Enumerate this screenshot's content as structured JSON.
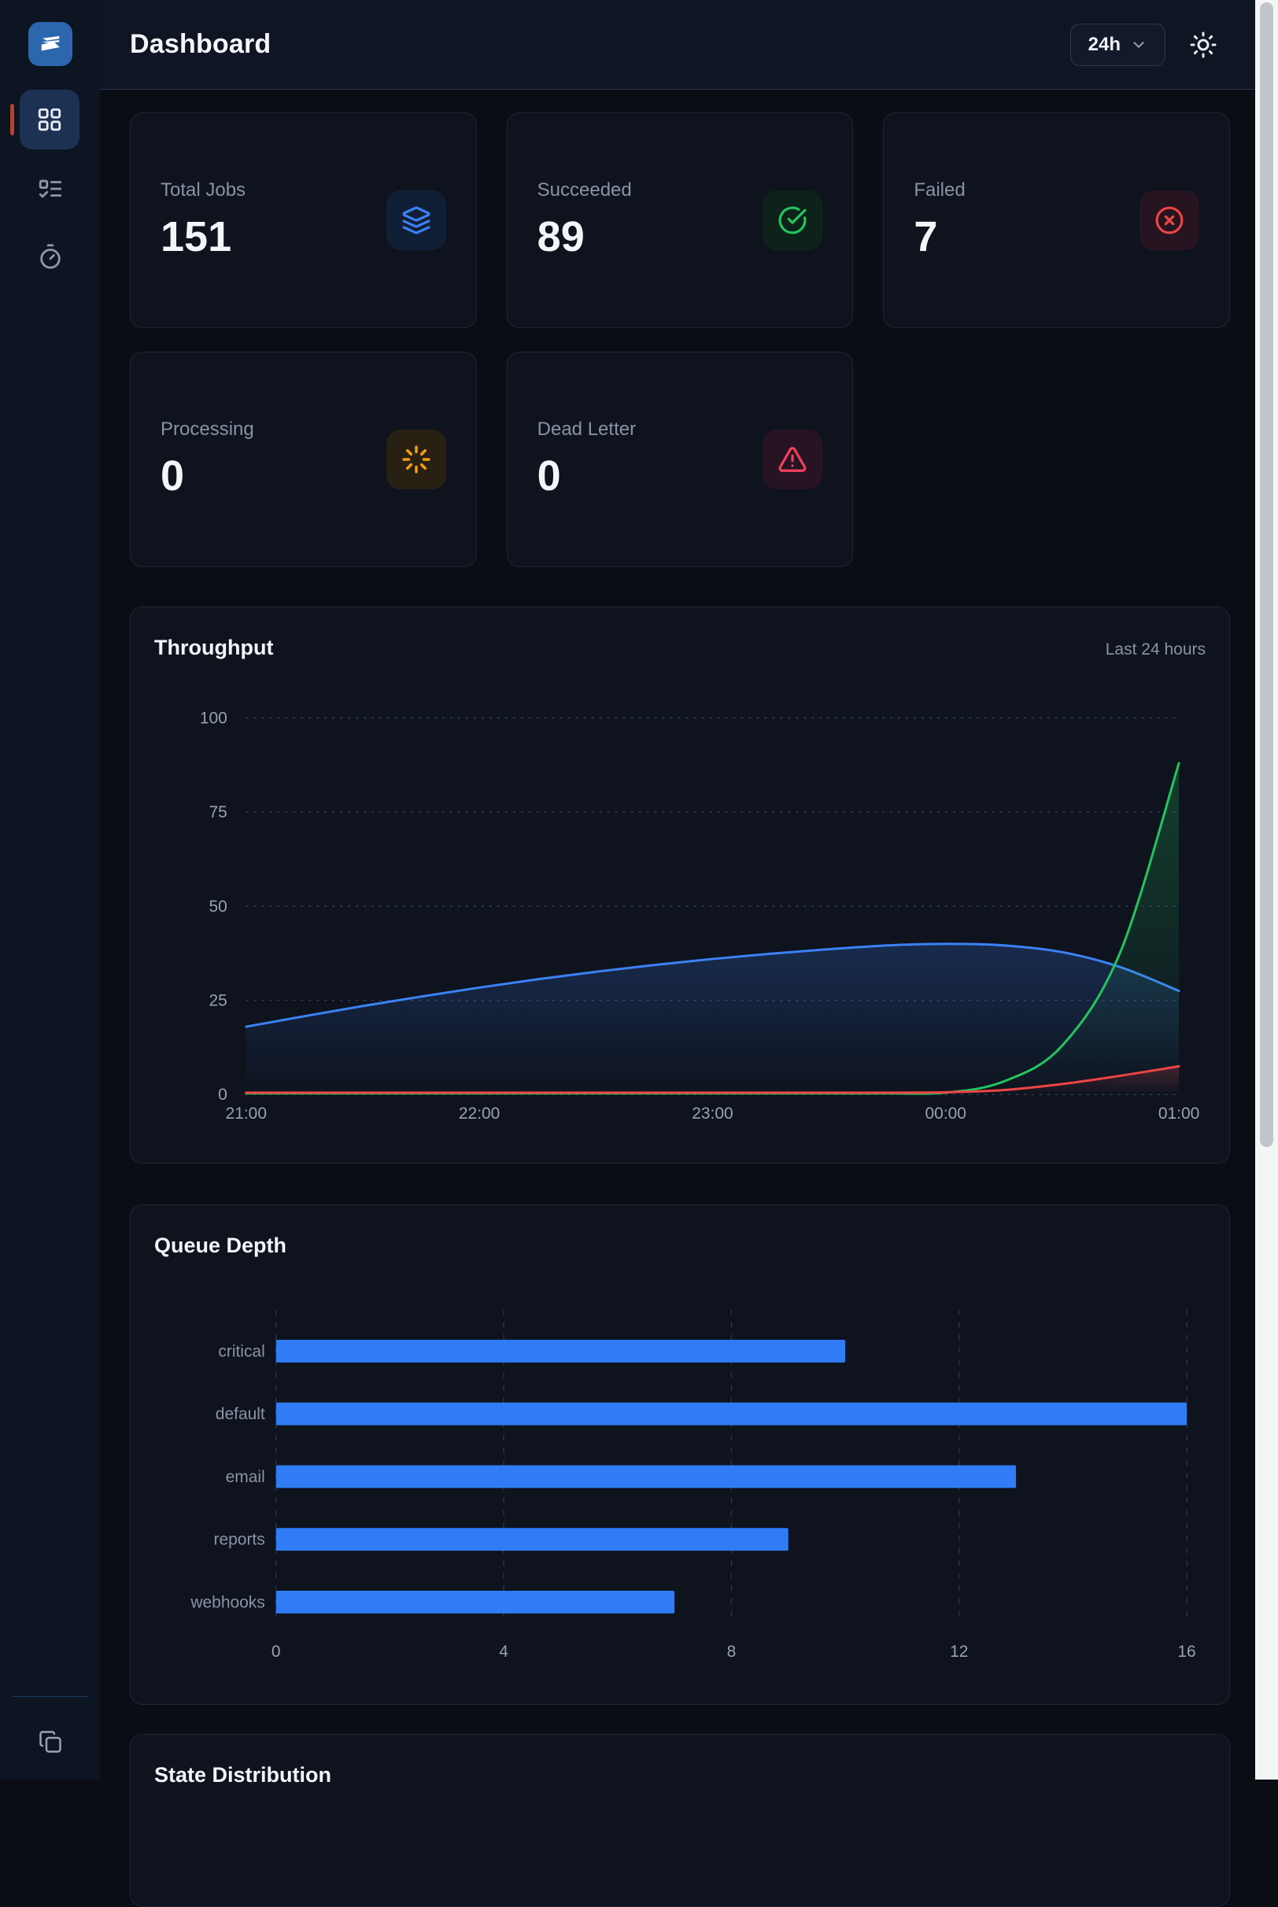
{
  "header": {
    "title": "Dashboard",
    "range": "24h"
  },
  "sidebar": {
    "items": [
      {
        "name": "dashboard",
        "icon": "layout-grid-icon",
        "active": true
      },
      {
        "name": "tasks",
        "icon": "list-todo-icon",
        "active": false
      },
      {
        "name": "timers",
        "icon": "timer-icon",
        "active": false
      },
      {
        "name": "copy",
        "icon": "copy-icon",
        "active": false
      }
    ]
  },
  "stats": [
    {
      "label": "Total Jobs",
      "value": "151",
      "icon": "layers-icon",
      "accent": "#3b82f6"
    },
    {
      "label": "Succeeded",
      "value": "89",
      "icon": "check-circle-icon",
      "accent": "#24c55e"
    },
    {
      "label": "Failed",
      "value": "7",
      "icon": "x-circle-icon",
      "accent": "#ef4444"
    },
    {
      "label": "Processing",
      "value": "0",
      "icon": "loader-icon",
      "accent": "#f59e0b"
    },
    {
      "label": "Dead Letter",
      "value": "0",
      "icon": "alert-triangle-icon",
      "accent": "#f43f5e"
    }
  ],
  "sections": {
    "state_distribution_title": "State Distribution"
  },
  "chart_data": [
    {
      "type": "area",
      "title": "Throughput",
      "subtitle": "Last 24 hours",
      "x_ticks": [
        "21:00",
        "22:00",
        "23:00",
        "00:00",
        "01:00"
      ],
      "x_range": [
        0,
        4
      ],
      "y_ticks": [
        0,
        25,
        50,
        75,
        100
      ],
      "ylim": [
        0,
        100
      ],
      "grid": "horizontal-dotted",
      "legend": "none",
      "series": [
        {
          "name": "blue-series",
          "color": "#3b82f6",
          "fill_opacity": 0.22,
          "x": [
            0,
            0.25,
            0.5,
            0.75,
            1,
            1.25,
            1.5,
            1.75,
            2,
            2.25,
            2.5,
            2.75,
            3,
            3.25,
            3.5,
            3.75,
            4
          ],
          "values": [
            18,
            20.8,
            23.5,
            26,
            28.4,
            30.6,
            32.6,
            34.4,
            36,
            37.4,
            38.6,
            39.6,
            40,
            39.6,
            37.8,
            33.8,
            27.5
          ]
        },
        {
          "name": "green-series",
          "color": "#22c55e",
          "fill_opacity": 0.25,
          "x": [
            0,
            0.25,
            0.5,
            0.75,
            1,
            1.25,
            1.5,
            1.75,
            2,
            2.25,
            2.5,
            2.75,
            3,
            3.25,
            3.5,
            3.75,
            4
          ],
          "values": [
            0.3,
            0.3,
            0.3,
            0.3,
            0.3,
            0.3,
            0.3,
            0.3,
            0.3,
            0.3,
            0.3,
            0.3,
            0.5,
            3.5,
            13,
            38,
            88
          ]
        },
        {
          "name": "red-series",
          "color": "#ef4444",
          "fill_opacity": 0.22,
          "x": [
            0,
            0.25,
            0.5,
            0.75,
            1,
            1.25,
            1.5,
            1.75,
            2,
            2.25,
            2.5,
            2.75,
            3,
            3.25,
            3.5,
            3.75,
            4
          ],
          "values": [
            0.5,
            0.5,
            0.5,
            0.5,
            0.5,
            0.5,
            0.5,
            0.5,
            0.5,
            0.5,
            0.5,
            0.5,
            0.6,
            1.2,
            2.8,
            5,
            7.5
          ]
        }
      ]
    },
    {
      "type": "bar",
      "orientation": "horizontal",
      "title": "Queue Depth",
      "categories": [
        "critical",
        "default",
        "email",
        "reports",
        "webhooks"
      ],
      "values": [
        10,
        16,
        13,
        9,
        7
      ],
      "x_ticks": [
        0,
        4,
        8,
        12,
        16
      ],
      "xlim": [
        0,
        16
      ],
      "bar_color": "#2f7cf6",
      "grid": "vertical-dashed",
      "legend": "none"
    }
  ]
}
